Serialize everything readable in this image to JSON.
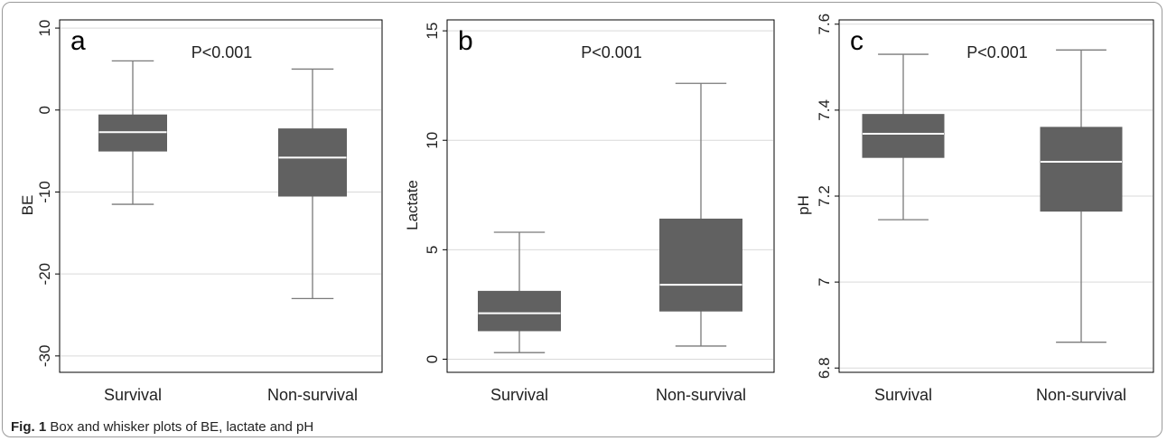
{
  "figure": {
    "caption_label": "Fig. 1",
    "caption_text": "Box and whisker plots of BE, lactate and pH"
  },
  "chart_data": [
    {
      "type": "box",
      "panel_label": "a",
      "annotation": "P<0.001",
      "ylabel": "BE",
      "ylim": [
        -32,
        11
      ],
      "yticks": [
        -30,
        -20,
        -10,
        0,
        10
      ],
      "ytick_labels": [
        "-30",
        "-20",
        "-10",
        "0",
        "10"
      ],
      "grid": true,
      "categories": [
        "Survival",
        "Non-survival"
      ],
      "boxes": [
        {
          "category": "Survival",
          "whisker_low": -11.5,
          "q1": -5,
          "median": -2.7,
          "q3": -0.6,
          "whisker_high": 6
        },
        {
          "category": "Non-survival",
          "whisker_low": -23,
          "q1": -10.5,
          "median": -5.8,
          "q3": -2.3,
          "whisker_high": 5
        }
      ]
    },
    {
      "type": "box",
      "panel_label": "b",
      "annotation": "P<0.001",
      "ylabel": "Lactate",
      "ylim": [
        -0.6,
        15.5
      ],
      "yticks": [
        0,
        5,
        10,
        15
      ],
      "ytick_labels": [
        "0",
        "5",
        "10",
        "15"
      ],
      "grid": true,
      "categories": [
        "Survival",
        "Non-survival"
      ],
      "boxes": [
        {
          "category": "Survival",
          "whisker_low": 0.3,
          "q1": 1.3,
          "median": 2.1,
          "q3": 3.1,
          "whisker_high": 5.8
        },
        {
          "category": "Non-survival",
          "whisker_low": 0.6,
          "q1": 2.2,
          "median": 3.4,
          "q3": 6.4,
          "whisker_high": 12.6
        }
      ]
    },
    {
      "type": "box",
      "panel_label": "c",
      "annotation": "P<0.001",
      "ylabel": "pH",
      "ylim": [
        6.79,
        7.61
      ],
      "yticks": [
        6.8,
        7.0,
        7.2,
        7.4,
        7.6
      ],
      "ytick_labels": [
        "6.8",
        "7",
        "7.2",
        "7.4",
        "7.6"
      ],
      "grid": true,
      "categories": [
        "Survival",
        "Non-survival"
      ],
      "boxes": [
        {
          "category": "Survival",
          "whisker_low": 7.145,
          "q1": 7.29,
          "median": 7.345,
          "q3": 7.39,
          "whisker_high": 7.53
        },
        {
          "category": "Non-survival",
          "whisker_low": 6.86,
          "q1": 7.165,
          "median": 7.28,
          "q3": 7.36,
          "whisker_high": 7.54
        }
      ]
    }
  ],
  "colors": {
    "box_fill": "#616161",
    "median_line": "#ffffff",
    "whisker": "#7a7a7a",
    "grid": "#d9d9d9",
    "text": "#222222",
    "axis": "#000000"
  }
}
